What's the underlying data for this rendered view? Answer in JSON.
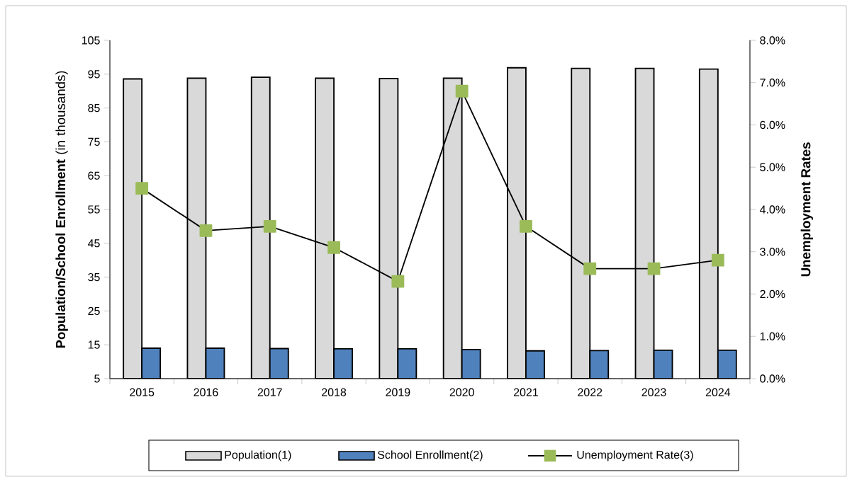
{
  "chart_data": {
    "type": "bar",
    "ylabel": "**Population/School Enrollment** (in thousands)",
    "y2label": "Unemployment Rates",
    "categories": [
      "2015",
      "2016",
      "2017",
      "2018",
      "2019",
      "2020",
      "2021",
      "2022",
      "2023",
      "2024"
    ],
    "series": [
      {
        "name": "Population(1)",
        "color": "#d9d9d9",
        "values": [
          93.6,
          93.8,
          94.1,
          93.8,
          93.7,
          93.8,
          96.9,
          96.7,
          96.7,
          96.5
        ]
      },
      {
        "name": "School Enrollment(2)",
        "color": "#4f81bd",
        "values": [
          14.0,
          14.0,
          13.9,
          13.8,
          13.8,
          13.6,
          13.2,
          13.3,
          13.4,
          13.4
        ]
      },
      {
        "name": "Unemployment Rate(3)",
        "type": "line",
        "axis": "y2",
        "color": "#9bbb59",
        "marker": "square",
        "values": [
          4.5,
          3.5,
          3.6,
          3.1,
          2.3,
          6.8,
          3.6,
          2.6,
          2.6,
          2.8
        ]
      }
    ],
    "ylim": [
      5,
      105
    ],
    "yticks": [
      5,
      15,
      25,
      35,
      45,
      55,
      65,
      75,
      85,
      95,
      105
    ],
    "y2lim": [
      0,
      8
    ],
    "y2ticks": [
      {
        "value": 0,
        "label": "0.0%"
      },
      {
        "value": 1,
        "label": "1.0%"
      },
      {
        "value": 2,
        "label": "2.0%"
      },
      {
        "value": 3,
        "label": "3.0%"
      },
      {
        "value": 4,
        "label": "4.0%"
      },
      {
        "value": 5,
        "label": "5.0%"
      },
      {
        "value": 6,
        "label": "6.0%"
      },
      {
        "value": 7,
        "label": "7.0%"
      },
      {
        "value": 8,
        "label": "8.0%"
      }
    ],
    "legend": "bottom"
  }
}
